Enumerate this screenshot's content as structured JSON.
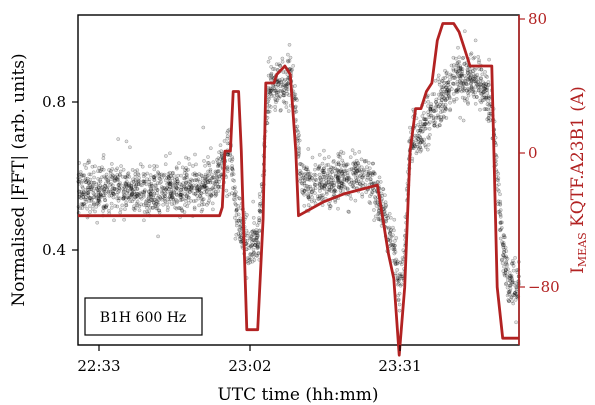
{
  "chart_data": {
    "type": "scatter",
    "xlabel": "UTC time (hh:mm)",
    "ylabel": "Normalised |FFT| (arb. units)",
    "ylabel_right_main": "I",
    "ylabel_right_sub": "MEAS",
    "ylabel_right_rest": " KQTF.A23B1 (A)",
    "annotation": "B1H 600 Hz",
    "x_ticks": [
      "22:33",
      "23:02",
      "23:31"
    ],
    "y_ticks": [
      "0.4",
      "0.8"
    ],
    "y2_ticks": [
      "80",
      "0",
      "−80"
    ],
    "x_range": [
      "22:31",
      "23:52"
    ],
    "ylim": [
      0.13,
      1.04
    ],
    "y2lim": [
      -114,
      80
    ],
    "grid": false,
    "colors": {
      "scatter": "#000000",
      "current": "#b22222",
      "right_axis": "#b22222"
    },
    "series": [
      {
        "axis": "left",
        "style": "scatter",
        "points_hh_mm": [
          [
            "22:31",
            0.56
          ],
          [
            "22:40",
            0.56
          ],
          [
            "22:50",
            0.56
          ],
          [
            "22:56",
            0.57
          ],
          [
            "22:57",
            0.62
          ],
          [
            "22:59",
            0.66
          ],
          [
            "22:59:30",
            0.58
          ],
          [
            "23:00",
            0.5
          ],
          [
            "23:01",
            0.46
          ],
          [
            "23:02",
            0.4
          ],
          [
            "23:04",
            0.42
          ],
          [
            "23:05",
            0.58
          ],
          [
            "23:06",
            0.84
          ],
          [
            "23:09",
            0.85
          ],
          [
            "23:10",
            0.87
          ],
          [
            "23:11",
            0.78
          ],
          [
            "23:12",
            0.57
          ],
          [
            "23:16",
            0.58
          ],
          [
            "23:22",
            0.6
          ],
          [
            "23:25",
            0.58
          ],
          [
            "23:27",
            0.5
          ],
          [
            "23:29",
            0.4
          ],
          [
            "23:30",
            0.28
          ],
          [
            "23:31",
            0.38
          ],
          [
            "23:32",
            0.7
          ],
          [
            "23:34",
            0.72
          ],
          [
            "23:37",
            0.78
          ],
          [
            "23:40",
            0.86
          ],
          [
            "23:44",
            0.87
          ],
          [
            "23:47",
            0.8
          ],
          [
            "23:49",
            0.4
          ],
          [
            "23:50",
            0.31
          ],
          [
            "23:52",
            0.29
          ]
        ]
      },
      {
        "axis": "right",
        "style": "step-line",
        "points_hh_mm": [
          [
            "22:31",
            -38
          ],
          [
            "22:55",
            -38
          ],
          [
            "22:57",
            -38
          ],
          [
            "22:57:30",
            -33
          ],
          [
            "22:58",
            0
          ],
          [
            "22:59",
            0
          ],
          [
            "22:59:30",
            35
          ],
          [
            "23:00:30",
            35
          ],
          [
            "23:01",
            0
          ],
          [
            "23:01:30",
            -55
          ],
          [
            "23:02",
            -105
          ],
          [
            "23:04",
            -105
          ],
          [
            "23:05",
            -40
          ],
          [
            "23:05:30",
            40
          ],
          [
            "23:07",
            40
          ],
          [
            "23:07:30",
            45
          ],
          [
            "23:09",
            50
          ],
          [
            "23:10",
            45
          ],
          [
            "23:11",
            0
          ],
          [
            "23:11:30",
            -38
          ],
          [
            "23:16",
            -30
          ],
          [
            "23:20",
            -25
          ],
          [
            "23:26",
            -20
          ],
          [
            "23:27",
            -40
          ],
          [
            "23:28",
            -60
          ],
          [
            "23:29",
            -75
          ],
          [
            "23:30",
            -120
          ],
          [
            "23:31",
            -80
          ],
          [
            "23:32",
            0
          ],
          [
            "23:33",
            25
          ],
          [
            "23:34",
            25
          ],
          [
            "23:35",
            35
          ],
          [
            "23:36",
            40
          ],
          [
            "23:37",
            65
          ],
          [
            "23:38",
            75
          ],
          [
            "23:40",
            75
          ],
          [
            "23:41",
            70
          ],
          [
            "23:42",
            60
          ],
          [
            "23:43",
            50
          ],
          [
            "23:47",
            50
          ],
          [
            "23:48",
            -80
          ],
          [
            "23:49",
            -110
          ],
          [
            "23:52",
            -110
          ]
        ]
      }
    ]
  }
}
